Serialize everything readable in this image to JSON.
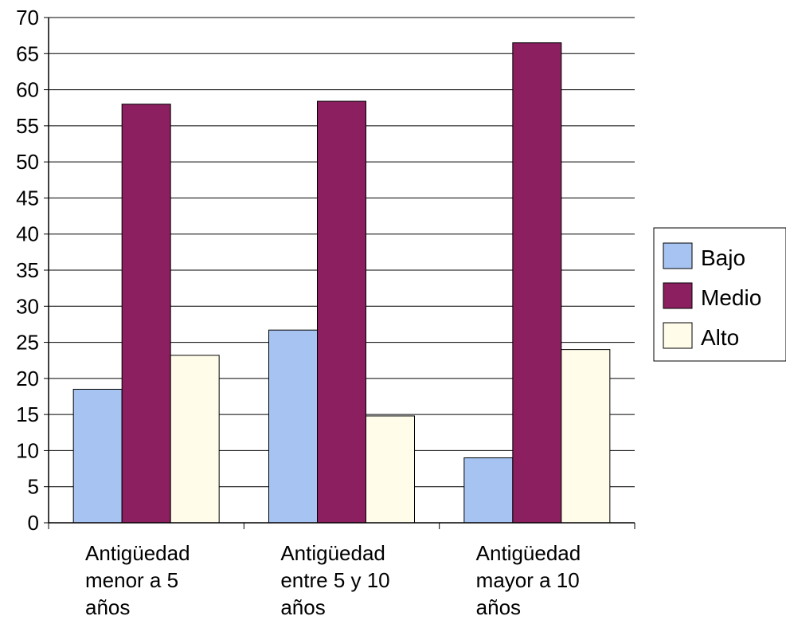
{
  "chart_data": {
    "type": "bar",
    "categories": [
      [
        "Antigüedad",
        "menor a 5",
        "años"
      ],
      [
        "Antigüedad",
        "entre 5 y 10",
        "años"
      ],
      [
        "Antigüedad",
        "mayor a 10",
        "años"
      ]
    ],
    "series": [
      {
        "name": "Bajo",
        "values": [
          18.5,
          26.7,
          9.0
        ],
        "color": "#a6c3f2"
      },
      {
        "name": "Medio",
        "values": [
          58.0,
          58.4,
          66.5
        ],
        "color": "#8b1f5f"
      },
      {
        "name": "Alto",
        "values": [
          23.2,
          14.8,
          24.0
        ],
        "color": "#fffde9"
      }
    ],
    "ylim": [
      0,
      70
    ],
    "yticks": [
      "0",
      "5",
      "10",
      "15",
      "20",
      "25",
      "30",
      "35",
      "40",
      "45",
      "50",
      "55",
      "60",
      "65",
      "70"
    ],
    "grid": true,
    "legend_position": "right",
    "xlabel": "",
    "ylabel": ""
  }
}
